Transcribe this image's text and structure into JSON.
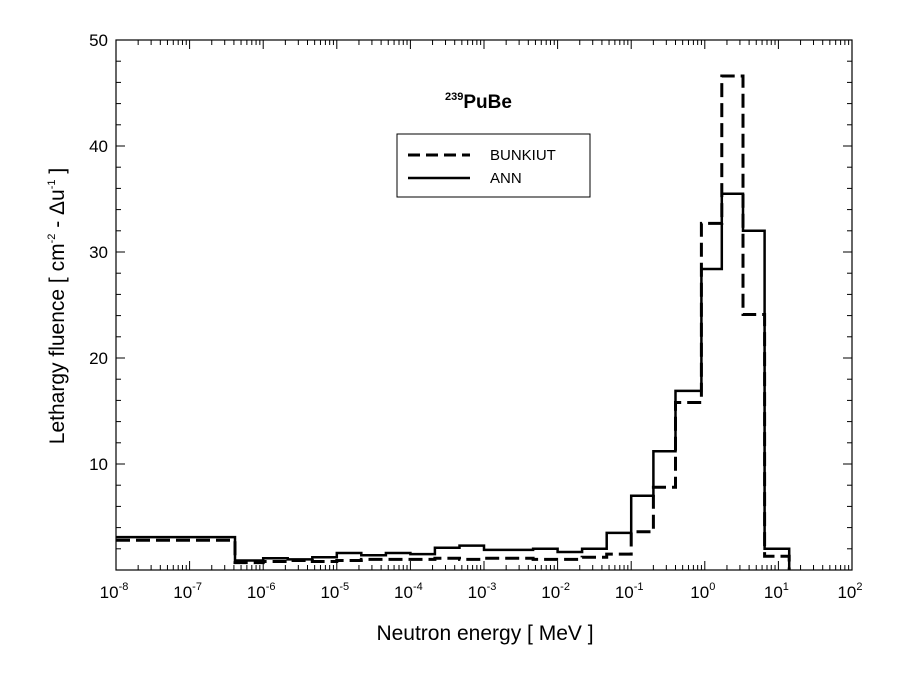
{
  "chart_data": {
    "type": "line",
    "title": "PuBe",
    "title_isotope": "239",
    "xlabel": "Neutron energy   [  MeV  ]",
    "ylabel_parts": [
      "Lethargy fluence  [  cm",
      "-2",
      " - Δu",
      "-1",
      "  ]"
    ],
    "x_scale": "log",
    "xlim": [
      1e-08,
      100
    ],
    "ylim": [
      0,
      50
    ],
    "x_tick_bases": [
      "10",
      "10",
      "10",
      "10",
      "10",
      "10",
      "10",
      "10",
      "10",
      "10",
      "10"
    ],
    "x_tick_exponents": [
      "-8",
      "-7",
      "-6",
      "-5",
      "-4",
      "-3",
      "-2",
      "-1",
      "0",
      "1",
      "2"
    ],
    "y_ticks": [
      "10",
      "20",
      "30",
      "40",
      "50"
    ],
    "legend_position": "upper-right, inside plot",
    "grid": false,
    "series": [
      {
        "name": "BUNKIUT",
        "style": "dashed",
        "color": "#000000",
        "bin_edges": [
          1e-08,
          4.14e-07,
          1e-06,
          2.15e-06,
          4.65e-06,
          1e-05,
          2.15e-05,
          4.65e-05,
          0.0001,
          0.000215,
          0.000465,
          0.001,
          0.00215,
          0.00465,
          0.01,
          0.0215,
          0.0465,
          0.1,
          0.2,
          0.4,
          0.9,
          1.7,
          3.3,
          6.5,
          14
        ],
        "values": [
          2.8,
          0.7,
          0.8,
          0.9,
          0.8,
          0.9,
          1.0,
          1.0,
          1.0,
          1.1,
          1.0,
          1.1,
          1.1,
          1.0,
          1.0,
          1.2,
          1.5,
          3.6,
          7.8,
          15.8,
          32.7,
          46.6,
          24.1,
          1.3
        ]
      },
      {
        "name": "ANN",
        "style": "solid",
        "color": "#000000",
        "bin_edges": [
          1e-08,
          4.14e-07,
          1e-06,
          2.15e-06,
          4.65e-06,
          1e-05,
          2.15e-05,
          4.65e-05,
          0.0001,
          0.000215,
          0.000465,
          0.001,
          0.00215,
          0.00465,
          0.01,
          0.0215,
          0.0465,
          0.1,
          0.2,
          0.4,
          0.9,
          1.7,
          3.3,
          6.5,
          14
        ],
        "values": [
          3.1,
          0.9,
          1.1,
          1.0,
          1.2,
          1.6,
          1.4,
          1.6,
          1.5,
          2.1,
          2.3,
          1.9,
          1.9,
          2.0,
          1.7,
          2.0,
          3.5,
          7.0,
          11.2,
          16.9,
          28.4,
          35.5,
          32.0,
          2.0
        ]
      }
    ]
  }
}
